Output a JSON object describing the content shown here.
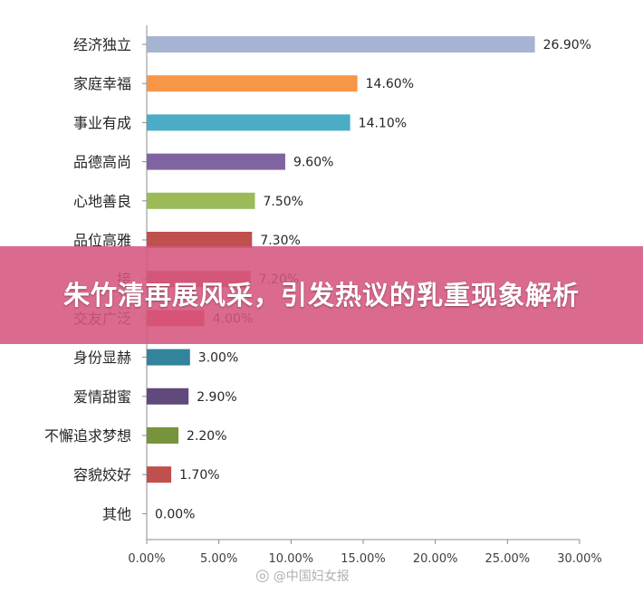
{
  "banner": {
    "title": "朱竹清再展风采，引发热议的乳重现象解析"
  },
  "watermark": {
    "icon": "weibo-icon",
    "text": "@中国妇女报"
  },
  "chart_data": {
    "type": "bar",
    "orientation": "horizontal",
    "categories": [
      "经济独立",
      "家庭幸福",
      "事业有成",
      "品德高尚",
      "心地善良",
      "品位高雅",
      "接受过良好教育",
      "交友广泛",
      "身份显赫",
      "爱情甜蜜",
      "不懈追求梦想",
      "容貌姣好",
      "其他"
    ],
    "values": [
      26.9,
      14.6,
      14.1,
      9.6,
      7.5,
      7.3,
      7.2,
      4.0,
      3.0,
      2.9,
      2.2,
      1.7,
      0.0
    ],
    "value_labels": [
      "26.90%",
      "14.60%",
      "14.10%",
      "9.60%",
      "7.50%",
      "7.30%",
      "7.20%",
      "4.00%",
      "3.00%",
      "2.90%",
      "2.20%",
      "1.70%",
      "0.00%"
    ],
    "category_labels": [
      "经济独立",
      "家庭幸福",
      "事业有成",
      "品德高尚",
      "心地善良",
      "品位高雅",
      "接",
      "交友广泛",
      "身份显赫",
      "爱情甜蜜",
      "不懈追求梦想",
      "容貌姣好",
      "其他"
    ],
    "colors": [
      "#A7B3D3",
      "#F79646",
      "#4BACC6",
      "#8064A2",
      "#9BBB59",
      "#C0504D",
      "#C0504D",
      "#D9464B",
      "#31849B",
      "#604A7B",
      "#77933C",
      "#C0504D",
      "#4F81BD"
    ],
    "xlim": [
      0,
      30
    ],
    "x_ticks": [
      "0.00%",
      "5.00%",
      "10.00%",
      "15.00%",
      "20.00%",
      "25.00%",
      "30.00%"
    ],
    "title": "",
    "xlabel": "",
    "ylabel": "",
    "grid": false,
    "legend": "none"
  }
}
